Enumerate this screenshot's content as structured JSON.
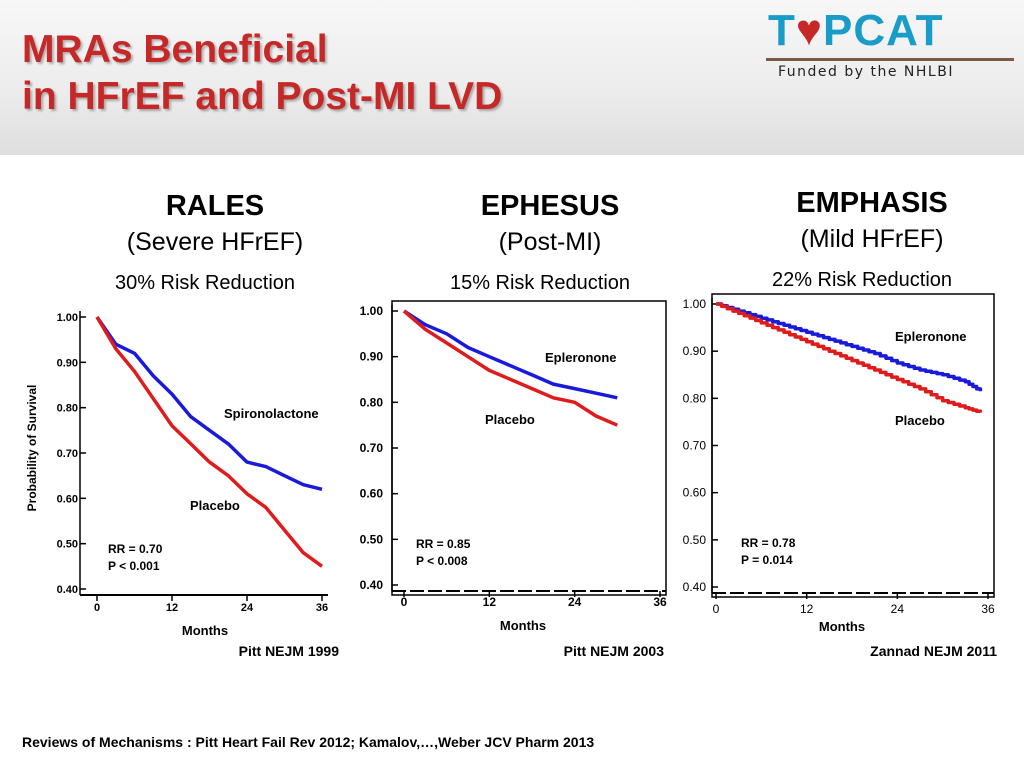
{
  "slide": {
    "title_line1": "MRAs Beneficial",
    "title_line2": "in HFrEF and Post-MI LVD",
    "footer": "Reviews of Mechanisms : Pitt  Heart Fail Rev 2012;   Kamalov,…,Weber  JCV Pharm 2013"
  },
  "logo": {
    "word_left": "T",
    "word_heart": "♥",
    "word_right": "PCAT",
    "tagline": "Funded by the NHLBI",
    "colors": {
      "text": "#1a9cc9",
      "heart": "#c62828"
    }
  },
  "colors": {
    "title": "#c62828",
    "treatment": "#1a1adb",
    "placebo": "#e01b1b"
  },
  "chart_data": [
    {
      "type": "line",
      "trial": "RALES",
      "population": "(Severe HFrEF)",
      "risk_reduction": "30% Risk Reduction",
      "xlabel": "Months",
      "ylabel": "Probability of Survival",
      "xlim": [
        0,
        36
      ],
      "ylim": [
        0.4,
        1.0
      ],
      "x_ticks": [
        "0",
        "12",
        "24",
        "36"
      ],
      "y_ticks": [
        "1.00",
        "0.90",
        "0.80",
        "0.70",
        "0.60",
        "0.50",
        "0.40"
      ],
      "series": [
        {
          "name": "Spironolactone",
          "role": "treatment",
          "x": [
            0,
            3,
            6,
            9,
            12,
            15,
            18,
            21,
            24,
            27,
            30,
            33,
            36
          ],
          "y": [
            1.0,
            0.94,
            0.92,
            0.87,
            0.83,
            0.78,
            0.75,
            0.72,
            0.68,
            0.67,
            0.65,
            0.63,
            0.62
          ]
        },
        {
          "name": "Placebo",
          "role": "placebo",
          "x": [
            0,
            3,
            6,
            9,
            12,
            15,
            18,
            21,
            24,
            27,
            30,
            33,
            36
          ],
          "y": [
            1.0,
            0.93,
            0.88,
            0.82,
            0.76,
            0.72,
            0.68,
            0.65,
            0.61,
            0.58,
            0.53,
            0.48,
            0.45
          ]
        }
      ],
      "stats": [
        "RR = 0.70",
        "P < 0.001"
      ],
      "citation": "Pitt NEJM 1999"
    },
    {
      "type": "line",
      "trial": "EPHESUS",
      "population": "(Post-MI)",
      "risk_reduction": "15% Risk Reduction",
      "xlabel": "Months",
      "xlim": [
        0,
        36
      ],
      "ylim": [
        0.4,
        1.0
      ],
      "x_ticks": [
        "0",
        "12",
        "24",
        "36"
      ],
      "y_ticks": [
        "1.00",
        "0.90",
        "0.80",
        "0.70",
        "0.60",
        "0.50",
        "0.40"
      ],
      "series": [
        {
          "name": "Epleronone",
          "role": "treatment",
          "x": [
            0,
            3,
            6,
            9,
            12,
            15,
            18,
            21,
            24,
            27,
            30
          ],
          "y": [
            1.0,
            0.97,
            0.95,
            0.92,
            0.9,
            0.88,
            0.86,
            0.84,
            0.83,
            0.82,
            0.81
          ]
        },
        {
          "name": "Placebo",
          "role": "placebo",
          "x": [
            0,
            3,
            6,
            9,
            12,
            15,
            18,
            21,
            24,
            27,
            30
          ],
          "y": [
            1.0,
            0.96,
            0.93,
            0.9,
            0.87,
            0.85,
            0.83,
            0.81,
            0.8,
            0.77,
            0.75
          ]
        }
      ],
      "stats": [
        "RR = 0.85",
        "P < 0.008"
      ],
      "citation": "Pitt NEJM 2003"
    },
    {
      "type": "line",
      "trial": "EMPHASIS",
      "population": "(Mild HFrEF)",
      "risk_reduction": "22% Risk Reduction",
      "xlabel": "Months",
      "xlim": [
        0,
        36
      ],
      "ylim": [
        0.4,
        1.0
      ],
      "x_ticks": [
        "0",
        "12",
        "24",
        "36"
      ],
      "y_ticks": [
        "1.00",
        "0.90",
        "0.80",
        "0.70",
        "0.60",
        "0.50",
        "0.40"
      ],
      "series": [
        {
          "name": "Epleronone",
          "role": "treatment",
          "step": true,
          "x": [
            0,
            3,
            6,
            9,
            12,
            15,
            18,
            21,
            24,
            27,
            30,
            33,
            35
          ],
          "y": [
            1.0,
            0.985,
            0.97,
            0.955,
            0.94,
            0.925,
            0.91,
            0.895,
            0.875,
            0.86,
            0.85,
            0.835,
            0.815
          ]
        },
        {
          "name": "Placebo",
          "role": "placebo",
          "step": true,
          "x": [
            0,
            3,
            6,
            9,
            12,
            15,
            18,
            21,
            24,
            27,
            30,
            33,
            35
          ],
          "y": [
            1.0,
            0.98,
            0.96,
            0.94,
            0.92,
            0.9,
            0.88,
            0.86,
            0.84,
            0.82,
            0.795,
            0.78,
            0.77
          ]
        }
      ],
      "stats": [
        "RR = 0.78",
        "P = 0.014"
      ],
      "citation": "Zannad NEJM 2011"
    }
  ]
}
